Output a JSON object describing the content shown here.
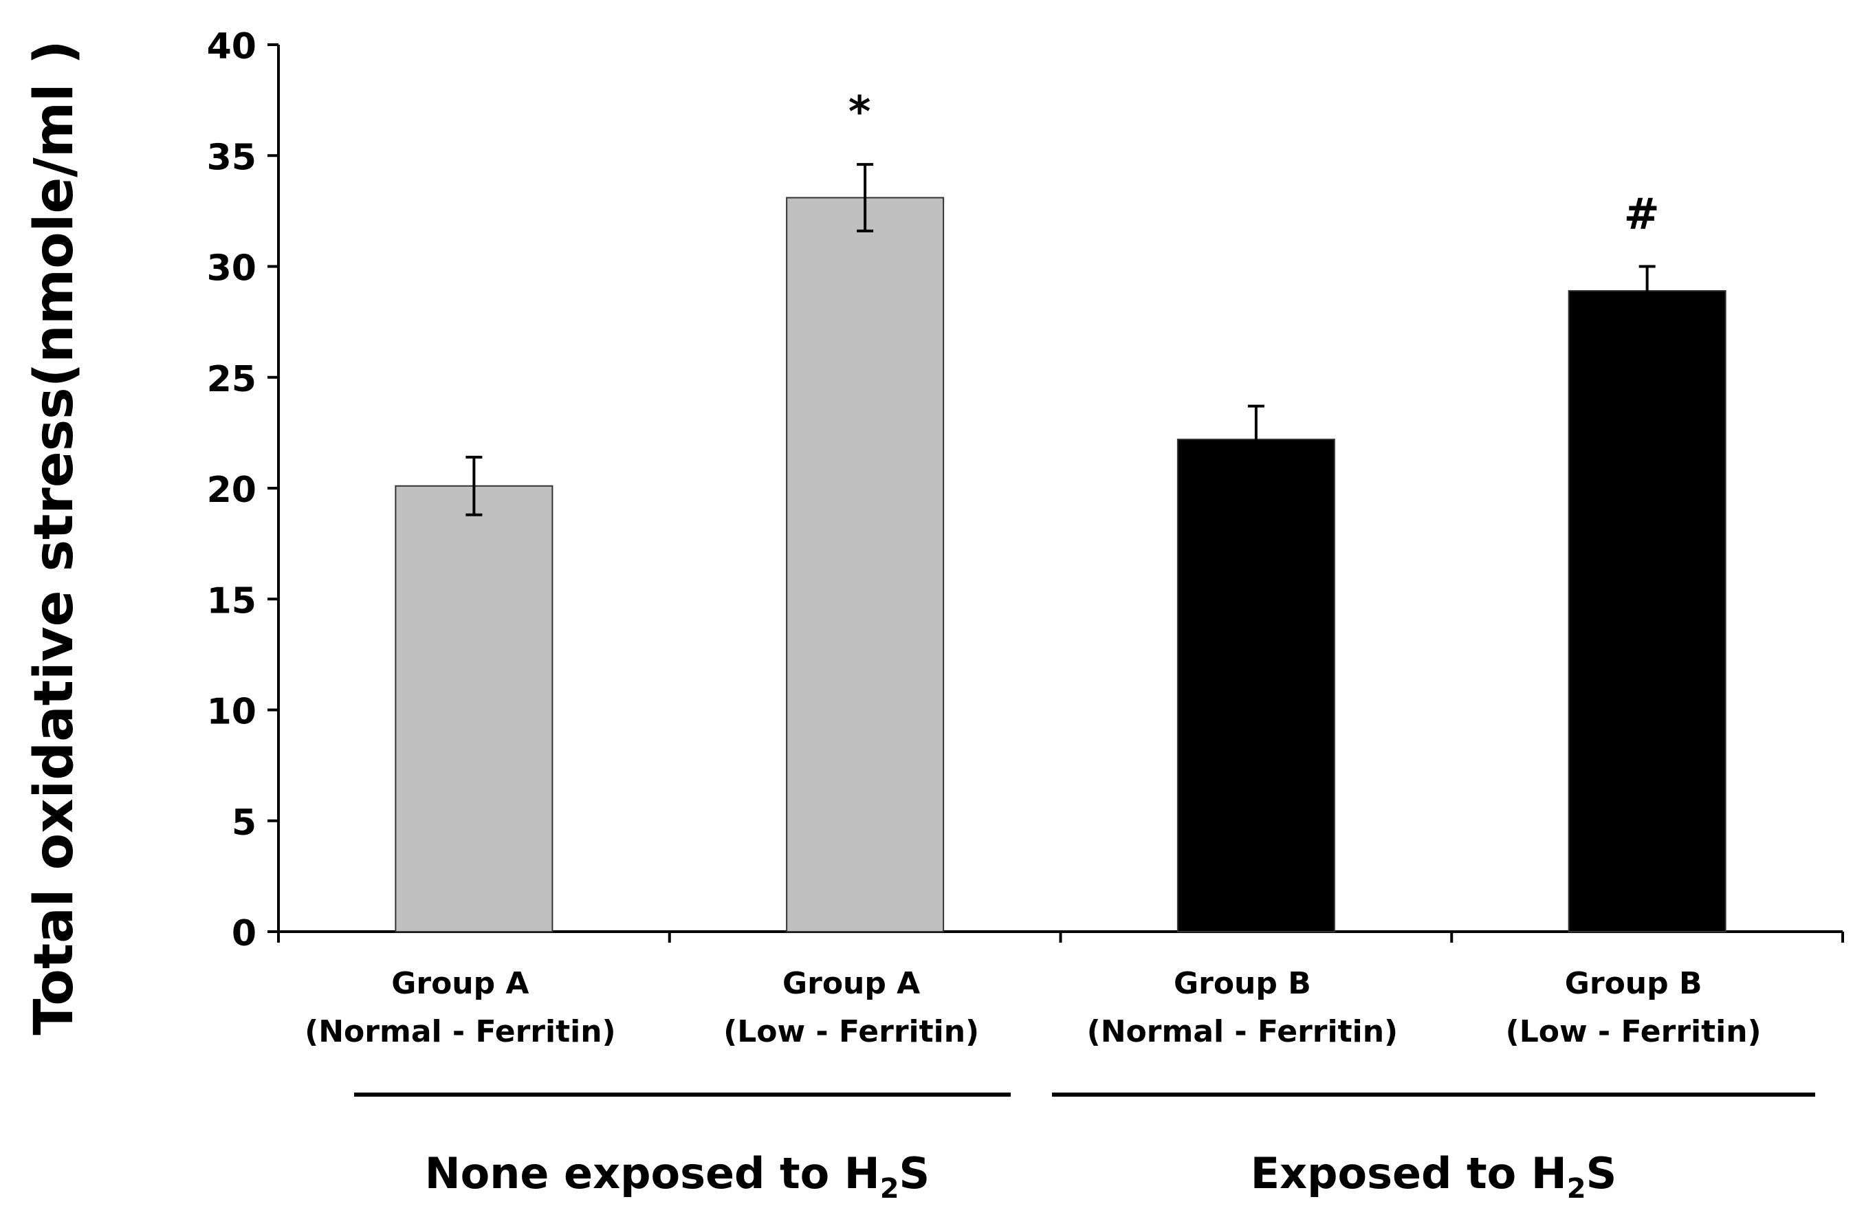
{
  "chart_data": {
    "type": "bar",
    "title": "",
    "ylabel": "Total oxidative stress(nmole/ml )",
    "xlabel": "",
    "ylim": [
      0,
      40
    ],
    "yticks": [
      0,
      5,
      10,
      15,
      20,
      25,
      30,
      35,
      40
    ],
    "grid": false,
    "categories": [
      {
        "line1": "Group A",
        "line2": "(Normal - Ferritin)"
      },
      {
        "line1": "Group A",
        "line2": "(Low - Ferritin)"
      },
      {
        "line1": "Group B",
        "line2": "(Normal - Ferritin)"
      },
      {
        "line1": "Group B",
        "line2": "(Low - Ferritin)"
      }
    ],
    "values": [
      20.1,
      33.1,
      22.2,
      28.9
    ],
    "errors": [
      1.3,
      1.5,
      1.5,
      1.1
    ],
    "bar_colors": [
      "#c0c0c0",
      "#c0c0c0",
      "#000000",
      "#000000"
    ],
    "annotations": [
      "",
      "*",
      "",
      "#"
    ],
    "groups": [
      {
        "label": "None exposed to H",
        "subscript": "2",
        "suffix": "S"
      },
      {
        "label": "Exposed to H",
        "subscript": "2",
        "suffix": "S"
      }
    ]
  }
}
